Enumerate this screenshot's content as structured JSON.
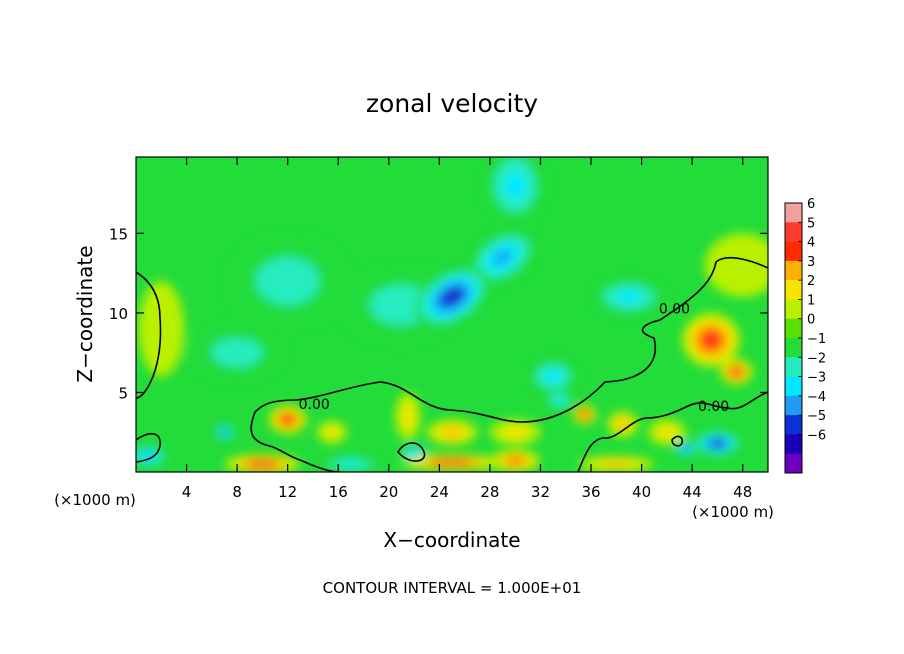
{
  "chart_data": {
    "type": "heatmap",
    "title": "zonal velocity",
    "xlabel": "X−coordinate",
    "ylabel": "Z−coordinate",
    "x_unit_left": "(×1000 m)",
    "x_unit_right": "(×1000 m)",
    "footer": "CONTOUR INTERVAL = 1.000E+01",
    "xlim": [
      0,
      50
    ],
    "ylim": [
      0,
      19.8
    ],
    "x_ticks": [
      4,
      8,
      12,
      16,
      20,
      24,
      28,
      32,
      36,
      40,
      44,
      48
    ],
    "y_ticks": [
      5,
      10,
      15
    ],
    "colorbar": {
      "levels": [
        6,
        5,
        4,
        3,
        2,
        1,
        0,
        -1,
        -2,
        -3,
        -4,
        -5,
        -6
      ],
      "level_labels": [
        "6",
        "5",
        "4",
        "3",
        "2",
        "1",
        "0",
        "−1",
        "−2",
        "−3",
        "−4",
        "−5",
        "−6"
      ],
      "colors": [
        "#f4a0a0",
        "#ff3b2b",
        "#ff2a00",
        "#ffb000",
        "#f4e400",
        "#b9f000",
        "#5ae000",
        "#22dc3a",
        "#25ecc0",
        "#00e8ff",
        "#1f9cf5",
        "#0a32d6",
        "#1a00b8",
        "#6c00c0"
      ]
    },
    "contour_labels": [
      {
        "text": "0.00",
        "x": 14.1,
        "z": 4.2
      },
      {
        "text": "0.00",
        "x": 42.6,
        "z": 10.2
      },
      {
        "text": "0.00",
        "x": 45.7,
        "z": 4.1
      }
    ],
    "features": [
      {
        "x": 25,
        "z": 11,
        "sx": 3.2,
        "sz": 1.6,
        "rot": -0.55,
        "value": -5.5
      },
      {
        "x": 29,
        "z": 13.5,
        "sx": 3.0,
        "sz": 1.5,
        "rot": -0.55,
        "value": -3.5
      },
      {
        "x": 30,
        "z": 18,
        "sx": 2.5,
        "sz": 2.5,
        "rot": 0,
        "value": -2.5
      },
      {
        "x": 21,
        "z": 10.5,
        "sx": 5,
        "sz": 2.5,
        "rot": 0,
        "value": -1.5
      },
      {
        "x": 39,
        "z": 11,
        "sx": 3,
        "sz": 1.2,
        "rot": 0,
        "value": -2.5
      },
      {
        "x": 33,
        "z": 6,
        "sx": 2,
        "sz": 1.2,
        "rot": 0,
        "value": -3
      },
      {
        "x": 12,
        "z": 12,
        "sx": 5,
        "sz": 3,
        "rot": 0,
        "value": -1.8
      },
      {
        "x": 8,
        "z": 7.5,
        "sx": 4,
        "sz": 1.8,
        "rot": 0,
        "value": -1.5
      },
      {
        "x": 45.5,
        "z": 8.3,
        "sx": 2.3,
        "sz": 1.7,
        "rot": 0,
        "value": 5
      },
      {
        "x": 47.5,
        "z": 6.3,
        "sx": 1.3,
        "sz": 0.8,
        "rot": 0,
        "value": 4.5
      },
      {
        "x": 48,
        "z": 13,
        "sx": 3,
        "sz": 2,
        "rot": 0,
        "value": 1.2
      },
      {
        "x": 2,
        "z": 9,
        "sx": 1.8,
        "sz": 3,
        "rot": 0,
        "value": 1
      },
      {
        "x": 12,
        "z": 3.3,
        "sx": 1.5,
        "sz": 0.9,
        "rot": 0,
        "value": 5
      },
      {
        "x": 15.5,
        "z": 2.5,
        "sx": 1.2,
        "sz": 0.7,
        "rot": 0,
        "value": 2
      },
      {
        "x": 21.5,
        "z": 3.5,
        "sx": 1,
        "sz": 1.5,
        "rot": 0,
        "value": 2
      },
      {
        "x": 25,
        "z": 2.5,
        "sx": 2,
        "sz": 0.8,
        "rot": 0,
        "value": 2.5
      },
      {
        "x": 30,
        "z": 2.5,
        "sx": 2,
        "sz": 0.8,
        "rot": 0,
        "value": 2
      },
      {
        "x": 35.5,
        "z": 3.6,
        "sx": 0.9,
        "sz": 0.6,
        "rot": 0,
        "value": 4.5
      },
      {
        "x": 38.5,
        "z": 3,
        "sx": 1.2,
        "sz": 0.8,
        "rot": 0,
        "value": 3
      },
      {
        "x": 42,
        "z": 2.5,
        "sx": 1.5,
        "sz": 0.8,
        "rot": 0,
        "value": 2
      },
      {
        "x": 7,
        "z": 2.5,
        "sx": 0.8,
        "sz": 0.5,
        "rot": 0,
        "value": -4.5
      },
      {
        "x": 46,
        "z": 1.8,
        "sx": 1.8,
        "sz": 0.8,
        "rot": 0,
        "value": -6
      },
      {
        "x": 43.5,
        "z": 1.5,
        "sx": 1,
        "sz": 0.5,
        "rot": 0,
        "value": -4.5
      },
      {
        "x": 33.5,
        "z": 4.5,
        "sx": 1.2,
        "sz": 0.6,
        "rot": 0,
        "value": -3
      },
      {
        "x": 22,
        "z": 1.2,
        "sx": 1.2,
        "sz": 0.5,
        "rot": 0,
        "value": -4
      },
      {
        "x": 1,
        "z": 1,
        "sx": 1.5,
        "sz": 0.7,
        "rot": 0,
        "value": -4
      },
      {
        "x": 10,
        "z": 0.5,
        "sx": 3,
        "sz": 0.6,
        "rot": 0,
        "value": 5
      },
      {
        "x": 25,
        "z": 0.6,
        "sx": 4,
        "sz": 0.5,
        "rot": 0,
        "value": 5
      },
      {
        "x": 30,
        "z": 0.7,
        "sx": 2,
        "sz": 0.7,
        "rot": 0,
        "value": 4
      },
      {
        "x": 17,
        "z": 0.5,
        "sx": 2.5,
        "sz": 0.5,
        "rot": 0,
        "value": -3
      },
      {
        "x": 38,
        "z": 0.5,
        "sx": 3,
        "sz": 0.5,
        "rot": 0,
        "value": 3
      }
    ]
  }
}
